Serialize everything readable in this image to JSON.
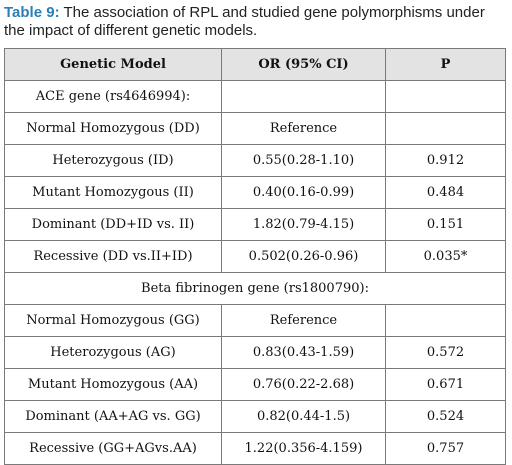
{
  "caption": {
    "label": "Table 9:",
    "text": " The association of  RPL and studied gene polymorphisms under the impact of different genetic models."
  },
  "table": {
    "headers": [
      "Genetic Model",
      "OR (95% CI)",
      "P"
    ],
    "sections": [
      {
        "title": "ACE gene (rs4646994):",
        "rows": [
          [
            "Normal Homozygous (DD)",
            "Reference",
            ""
          ],
          [
            "Heterozygous (ID)",
            "0.55(0.28-1.10)",
            "0.912"
          ],
          [
            "Mutant Homozygous (II)",
            "0.40(0.16-0.99)",
            "0.484"
          ],
          [
            "Dominant (DD+ID vs. II)",
            "1.82(0.79-4.15)",
            "0.151"
          ],
          [
            "Recessive (DD vs.II+ID)",
            "0.502(0.26-0.96)",
            "0.035*"
          ]
        ]
      },
      {
        "title": "Beta fibrinogen gene (rs1800790):",
        "rows": [
          [
            "Normal Homozygous (GG)",
            "Reference",
            ""
          ],
          [
            "Heterozygous (AG)",
            "0.83(0.43-1.59)",
            "0.572"
          ],
          [
            "Mutant Homozygous (AA)",
            "0.76(0.22-2.68)",
            "0.671"
          ],
          [
            "Dominant (AA+AG vs. GG)",
            "0.82(0.44-1.5)",
            "0.524"
          ],
          [
            "Recessive (GG+AGvs.AA)",
            "1.22(0.356-4.159)",
            "0.757"
          ]
        ]
      }
    ]
  }
}
